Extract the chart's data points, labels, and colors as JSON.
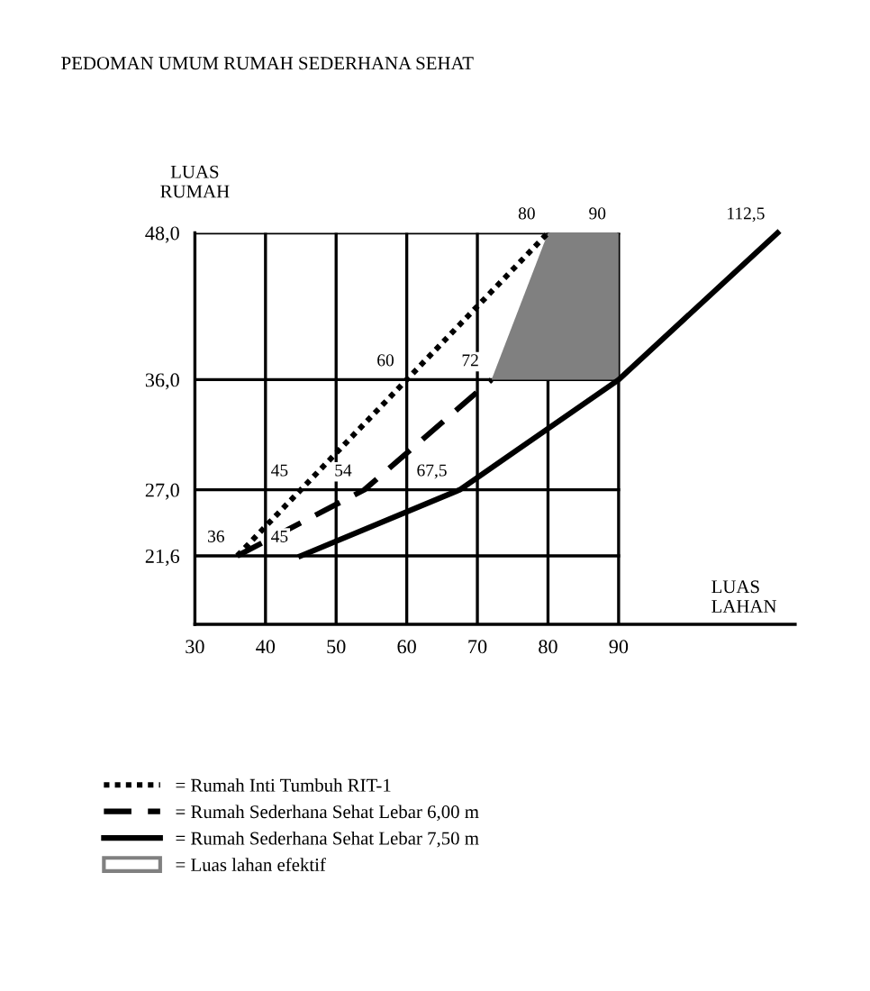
{
  "chart_data": {
    "type": "line",
    "title": "PEDOMAN UMUM RUMAH SEDERHANA SEHAT",
    "xlabel": "LUAS\nLAHAN",
    "ylabel": "LUAS\nRUMAH",
    "xlim": [
      30,
      115
    ],
    "xticks": [
      30,
      40,
      50,
      60,
      70,
      80,
      90
    ],
    "ylim": [
      16,
      48
    ],
    "yticks": [
      {
        "value": 21.6,
        "label": "21,6"
      },
      {
        "value": 27,
        "label": "27,0"
      },
      {
        "value": 36,
        "label": "36,0"
      },
      {
        "value": 48,
        "label": "48,0"
      }
    ],
    "grid": true,
    "legend": "bottom",
    "series": [
      {
        "type": "area",
        "name": "= Luas lahan efektif",
        "color": "#808080",
        "x": [
          72,
          80,
          90,
          90,
          72
        ],
        "values": [
          36,
          48,
          48,
          36,
          36
        ]
      },
      {
        "name": "= Rumah Inti Tumbuh RIT-1",
        "color": "#000000",
        "line_style": "dotted",
        "x": [
          36,
          45,
          60,
          80
        ],
        "values": [
          21.6,
          27,
          36,
          48
        ]
      },
      {
        "name": "= Rumah Sederhana Sehat Lebar 6,00 m",
        "color": "#000000",
        "line_style": "dashed",
        "x": [
          36,
          54,
          72
        ],
        "values": [
          21.6,
          27,
          36
        ]
      },
      {
        "name": "= Rumah Sederhana Sehat Lebar 7,50 m",
        "color": "#000000",
        "line_style": "solid",
        "x": [
          45,
          67.5,
          90,
          112.5
        ],
        "values": [
          21.6,
          27,
          36,
          48
        ]
      }
    ],
    "annotations": [
      {
        "text": "36",
        "x": 36,
        "y": 21.6
      },
      {
        "text": "45",
        "x": 45,
        "y": 27
      },
      {
        "text": "60",
        "x": 60,
        "y": 36
      },
      {
        "text": "80",
        "x": 80,
        "y": 48
      },
      {
        "text": "54",
        "x": 54,
        "y": 27
      },
      {
        "text": "72",
        "x": 72,
        "y": 36
      },
      {
        "text": "45",
        "x": 45,
        "y": 21.6
      },
      {
        "text": "67,5",
        "x": 67.5,
        "y": 27
      },
      {
        "text": "90",
        "x": 90,
        "y": 48
      },
      {
        "text": "112,5",
        "x": 112.5,
        "y": 48
      }
    ]
  }
}
